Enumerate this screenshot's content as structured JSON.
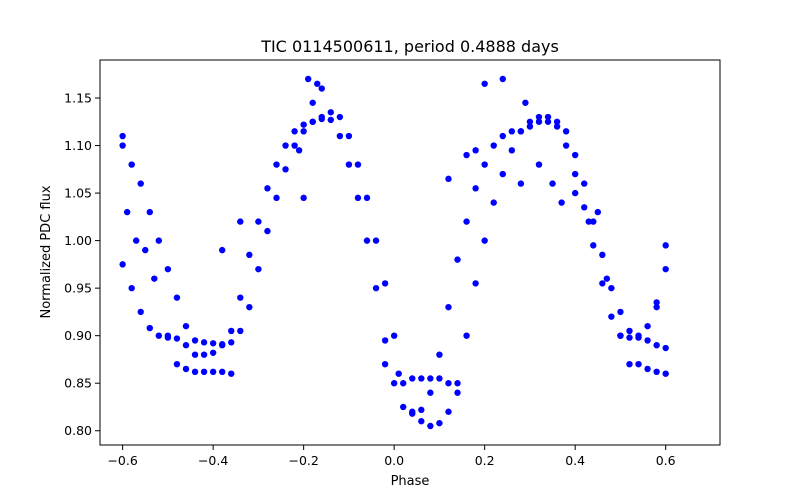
{
  "chart_data": {
    "type": "scatter",
    "title": "TIC 0114500611, period 0.4888 days",
    "xlabel": "Phase",
    "ylabel": "Normalized PDC flux",
    "xlim": [
      -0.65,
      0.72
    ],
    "ylim": [
      0.785,
      1.19
    ],
    "xticks": [
      -0.6,
      -0.4,
      -0.2,
      0.0,
      0.2,
      0.4,
      0.6
    ],
    "xtick_labels": [
      "−0.6",
      "−0.4",
      "−0.2",
      "0.0",
      "0.2",
      "0.4",
      "0.6"
    ],
    "yticks": [
      0.8,
      0.85,
      0.9,
      0.95,
      1.0,
      1.05,
      1.1,
      1.15
    ],
    "ytick_labels": [
      "0.80",
      "0.85",
      "0.90",
      "0.95",
      "1.00",
      "1.05",
      "1.10",
      "1.15"
    ],
    "grid": false,
    "marker_color": "#0000ff",
    "series": [
      {
        "points": [
          [
            -0.6,
            1.1
          ],
          [
            -0.58,
            1.08
          ],
          [
            -0.56,
            1.06
          ],
          [
            -0.54,
            1.03
          ],
          [
            -0.52,
            1.0
          ],
          [
            -0.5,
            0.97
          ],
          [
            -0.48,
            0.94
          ],
          [
            -0.46,
            0.91
          ],
          [
            -0.44,
            0.895
          ],
          [
            -0.42,
            0.893
          ],
          [
            -0.4,
            0.892
          ],
          [
            -0.38,
            0.891
          ],
          [
            -0.36,
            0.893
          ],
          [
            -0.34,
            0.905
          ],
          [
            -0.32,
            0.93
          ],
          [
            -0.3,
            0.97
          ],
          [
            -0.28,
            1.01
          ],
          [
            -0.26,
            1.045
          ],
          [
            -0.24,
            1.075
          ],
          [
            -0.22,
            1.1
          ],
          [
            -0.2,
            1.115
          ],
          [
            -0.18,
            1.125
          ],
          [
            -0.16,
            1.13
          ],
          [
            -0.14,
            1.127
          ],
          [
            -0.12,
            1.11
          ],
          [
            -0.1,
            1.08
          ],
          [
            -0.08,
            1.045
          ],
          [
            -0.06,
            1.0
          ],
          [
            -0.04,
            0.95
          ],
          [
            -0.02,
            0.895
          ],
          [
            0.0,
            0.85
          ],
          [
            0.02,
            0.825
          ],
          [
            0.04,
            0.818
          ],
          [
            0.06,
            0.822
          ],
          [
            0.08,
            0.84
          ],
          [
            0.1,
            0.88
          ],
          [
            0.12,
            0.93
          ],
          [
            0.14,
            0.98
          ],
          [
            0.16,
            1.02
          ],
          [
            0.18,
            1.055
          ],
          [
            0.2,
            1.08
          ],
          [
            0.22,
            1.1
          ],
          [
            0.24,
            1.11
          ],
          [
            0.26,
            1.115
          ],
          [
            0.28,
            1.115
          ],
          [
            0.3,
            1.12
          ],
          [
            0.32,
            1.125
          ],
          [
            0.34,
            1.125
          ],
          [
            0.36,
            1.12
          ],
          [
            0.38,
            1.1
          ],
          [
            0.4,
            1.07
          ],
          [
            0.42,
            1.035
          ],
          [
            0.44,
            0.995
          ],
          [
            0.46,
            0.955
          ],
          [
            0.48,
            0.92
          ],
          [
            0.5,
            0.9
          ],
          [
            0.52,
            0.898
          ],
          [
            0.54,
            0.898
          ],
          [
            0.56,
            0.895
          ],
          [
            0.58,
            0.89
          ],
          [
            0.6,
            0.887
          ]
        ]
      },
      {
        "points": [
          [
            -0.6,
            0.975
          ],
          [
            -0.58,
            0.95
          ],
          [
            -0.56,
            0.925
          ],
          [
            -0.54,
            0.908
          ],
          [
            -0.52,
            0.9
          ],
          [
            -0.5,
            0.898
          ],
          [
            -0.48,
            0.897
          ],
          [
            -0.46,
            0.89
          ],
          [
            -0.44,
            0.88
          ],
          [
            -0.42,
            0.88
          ],
          [
            -0.4,
            0.882
          ],
          [
            -0.38,
            0.89
          ],
          [
            -0.36,
            0.905
          ],
          [
            -0.34,
            0.94
          ],
          [
            -0.32,
            0.985
          ],
          [
            -0.3,
            1.02
          ],
          [
            -0.28,
            1.055
          ],
          [
            -0.26,
            1.08
          ],
          [
            -0.24,
            1.1
          ],
          [
            -0.22,
            1.115
          ],
          [
            -0.2,
            1.122
          ],
          [
            -0.18,
            1.125
          ],
          [
            -0.16,
            1.128
          ],
          [
            -0.14,
            1.135
          ],
          [
            -0.12,
            1.13
          ],
          [
            -0.1,
            1.11
          ],
          [
            -0.08,
            1.08
          ],
          [
            -0.06,
            1.045
          ],
          [
            -0.04,
            1.0
          ],
          [
            -0.02,
            0.955
          ],
          [
            0.0,
            0.9
          ],
          [
            0.02,
            0.85
          ],
          [
            0.04,
            0.82
          ],
          [
            0.06,
            0.81
          ],
          [
            0.08,
            0.805
          ],
          [
            0.1,
            0.808
          ],
          [
            0.12,
            0.82
          ],
          [
            0.14,
            0.85
          ],
          [
            0.16,
            0.9
          ],
          [
            0.18,
            0.955
          ],
          [
            0.2,
            1.0
          ],
          [
            0.22,
            1.04
          ],
          [
            0.24,
            1.07
          ],
          [
            0.26,
            1.095
          ],
          [
            0.28,
            1.115
          ],
          [
            0.3,
            1.125
          ],
          [
            0.32,
            1.13
          ],
          [
            0.34,
            1.13
          ],
          [
            0.36,
            1.125
          ],
          [
            0.38,
            1.115
          ],
          [
            0.4,
            1.09
          ],
          [
            0.42,
            1.06
          ],
          [
            0.44,
            1.02
          ],
          [
            0.46,
            0.985
          ],
          [
            0.48,
            0.95
          ],
          [
            0.5,
            0.925
          ],
          [
            0.52,
            0.905
          ],
          [
            0.54,
            0.9
          ],
          [
            0.56,
            0.91
          ],
          [
            0.58,
            0.935
          ],
          [
            0.6,
            0.97
          ]
        ]
      },
      {
        "points": [
          [
            -0.6,
            1.11
          ],
          [
            -0.59,
            1.03
          ],
          [
            -0.57,
            1.0
          ],
          [
            -0.55,
            0.99
          ],
          [
            -0.53,
            0.96
          ],
          [
            -0.5,
            0.9
          ],
          [
            -0.48,
            0.87
          ],
          [
            -0.46,
            0.865
          ],
          [
            -0.44,
            0.862
          ],
          [
            -0.42,
            0.862
          ],
          [
            -0.4,
            0.862
          ],
          [
            -0.38,
            0.862
          ],
          [
            -0.36,
            0.86
          ],
          [
            -0.38,
            0.99
          ],
          [
            -0.34,
            1.02
          ],
          [
            -0.2,
            1.045
          ],
          [
            -0.19,
            1.17
          ],
          [
            -0.17,
            1.165
          ],
          [
            -0.16,
            1.16
          ],
          [
            -0.18,
            1.145
          ],
          [
            -0.21,
            1.095
          ],
          [
            -0.02,
            0.87
          ],
          [
            0.01,
            0.86
          ],
          [
            0.04,
            0.855
          ],
          [
            0.06,
            0.855
          ],
          [
            0.08,
            0.855
          ],
          [
            0.1,
            0.855
          ],
          [
            0.12,
            0.85
          ],
          [
            0.14,
            0.84
          ],
          [
            0.12,
            1.065
          ],
          [
            0.16,
            1.09
          ],
          [
            0.18,
            1.095
          ],
          [
            0.2,
            1.165
          ],
          [
            0.24,
            1.17
          ],
          [
            0.29,
            1.145
          ],
          [
            0.28,
            1.06
          ],
          [
            0.32,
            1.08
          ],
          [
            0.35,
            1.06
          ],
          [
            0.37,
            1.04
          ],
          [
            0.4,
            1.05
          ],
          [
            0.43,
            1.02
          ],
          [
            0.45,
            1.03
          ],
          [
            0.47,
            0.96
          ],
          [
            0.5,
            0.9
          ],
          [
            0.52,
            0.87
          ],
          [
            0.54,
            0.87
          ],
          [
            0.56,
            0.865
          ],
          [
            0.58,
            0.862
          ],
          [
            0.6,
            0.86
          ],
          [
            0.6,
            0.995
          ],
          [
            0.58,
            0.93
          ]
        ]
      }
    ]
  }
}
